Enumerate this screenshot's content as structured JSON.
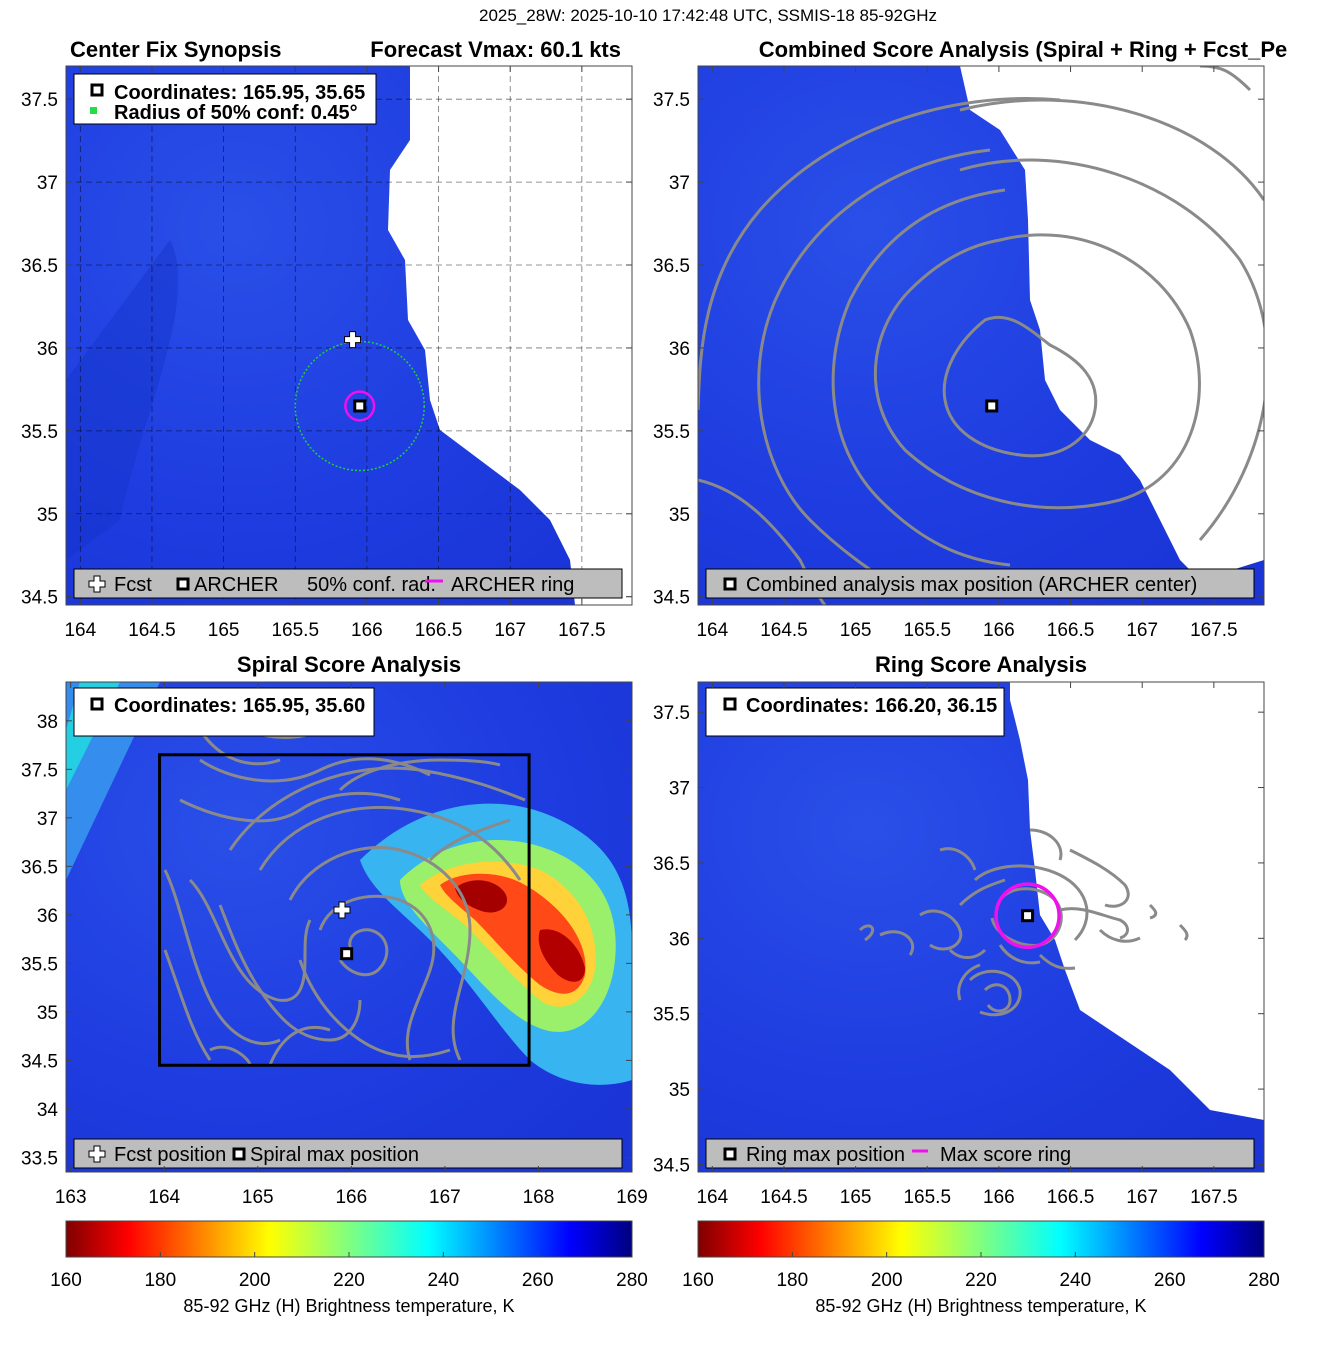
{
  "figure": {
    "suptitle": "2025_28W: 2025-10-10 17:42:48 UTC, SSMIS-18 85-92GHz"
  },
  "colors": {
    "background_field": "#1f3fe6",
    "cold_cloud_field": "#ffffff",
    "contour": "#8a8a8a",
    "ring": "#ee11ee",
    "conf_circle": "#22cc44",
    "legend_bg": "#bdbdbd"
  },
  "icons": {
    "fcst_marker": "white-plus-icon",
    "archer_marker": "black-square-icon",
    "ring_marker": "magenta-line-icon"
  },
  "chart_data": [
    {
      "type": "heatmap",
      "panel": "center-fix-synopsis",
      "title_left": "Center Fix Synopsis",
      "title_right": "Forecast Vmax: 60.1 kts",
      "xlim": [
        163.9,
        167.85
      ],
      "ylim": [
        34.45,
        37.7
      ],
      "x_ticks": [
        164,
        164.5,
        165,
        165.5,
        166,
        166.5,
        167,
        167.5
      ],
      "x_tick_labels": [
        "164",
        "164.5",
        "165",
        "165.5",
        "166",
        "166.5",
        "167",
        "167.5"
      ],
      "y_ticks": [
        34.5,
        35,
        35.5,
        36,
        36.5,
        37,
        37.5
      ],
      "y_tick_labels": [
        "34.5",
        "35",
        "35.5",
        "36",
        "36.5",
        "37",
        "37.5"
      ],
      "grid": true,
      "info_box": [
        "Coordinates: 165.95, 35.65",
        "Radius of 50% conf: 0.45°"
      ],
      "legend_items": [
        "Fcst",
        "ARCHER",
        "50% conf. rad.",
        "ARCHER ring"
      ],
      "fcst_position": [
        165.9,
        36.05
      ],
      "archer_center": [
        165.95,
        35.65
      ],
      "conf_radius_deg": 0.45,
      "archer_ring_radius_deg": 0.1
    },
    {
      "type": "heatmap",
      "panel": "combined-score-analysis",
      "title": "Combined Score Analysis (Spiral + Ring + Fcst_Pe",
      "xlim": [
        163.9,
        167.85
      ],
      "ylim": [
        34.45,
        37.7
      ],
      "x_ticks": [
        164,
        164.5,
        165,
        165.5,
        166,
        166.5,
        167,
        167.5
      ],
      "x_tick_labels": [
        "164",
        "164.5",
        "165",
        "165.5",
        "166",
        "166.5",
        "167",
        "167.5"
      ],
      "y_ticks": [
        34.5,
        35,
        35.5,
        36,
        36.5,
        37,
        37.5
      ],
      "y_tick_labels": [
        "34.5",
        "35",
        "35.5",
        "36",
        "36.5",
        "37",
        "37.5"
      ],
      "legend_items": [
        "Combined analysis max position (ARCHER center)"
      ],
      "max_position": [
        165.95,
        35.65
      ]
    },
    {
      "type": "heatmap",
      "panel": "spiral-score-analysis",
      "title": "Spiral Score Analysis",
      "xlim": [
        162.95,
        169.0
      ],
      "ylim": [
        33.35,
        38.4
      ],
      "x_ticks": [
        163,
        164,
        165,
        166,
        167,
        168,
        169
      ],
      "x_tick_labels": [
        "163",
        "164",
        "165",
        "166",
        "167",
        "168",
        "169"
      ],
      "y_ticks": [
        33.5,
        34,
        34.5,
        35,
        35.5,
        36,
        36.5,
        37,
        37.5,
        38
      ],
      "y_tick_labels": [
        "33.5",
        "34",
        "34.5",
        "35",
        "35.5",
        "36",
        "36.5",
        "37",
        "37.5",
        "38"
      ],
      "info_box": [
        "Coordinates: 165.95, 35.60"
      ],
      "legend_items": [
        "Fcst position",
        "Spiral max position"
      ],
      "fcst_position": [
        165.9,
        36.05
      ],
      "spiral_max_position": [
        165.95,
        35.6
      ],
      "search_box": {
        "lon": [
          163.95,
          167.9
        ],
        "lat": [
          34.45,
          37.65
        ]
      }
    },
    {
      "type": "heatmap",
      "panel": "ring-score-analysis",
      "title": "Ring Score Analysis",
      "xlim": [
        163.9,
        167.85
      ],
      "ylim": [
        34.45,
        37.7
      ],
      "x_ticks": [
        164,
        164.5,
        165,
        165.5,
        166,
        166.5,
        167,
        167.5
      ],
      "x_tick_labels": [
        "164",
        "164.5",
        "165",
        "165.5",
        "166",
        "166.5",
        "167",
        "167.5"
      ],
      "y_ticks": [
        34.5,
        35,
        35.5,
        36,
        36.5,
        37,
        37.5
      ],
      "y_tick_labels": [
        "34.5",
        "35",
        "35.5",
        "36",
        "36.5",
        "37",
        "37.5"
      ],
      "info_box": [
        "Coordinates: 166.20, 36.15"
      ],
      "legend_items": [
        "Ring max position",
        "Max score ring"
      ],
      "ring_max_position": [
        166.2,
        36.15
      ],
      "max_score_ring_radius_deg": 0.22
    }
  ],
  "colorbars": [
    {
      "ticks": [
        160,
        180,
        200,
        220,
        240,
        260,
        280
      ],
      "tick_labels": [
        "160",
        "180",
        "200",
        "220",
        "240",
        "260",
        "280"
      ],
      "label": "85-92 GHz (H) Brightness temperature, K",
      "range": [
        160,
        280
      ],
      "colormap": "jet"
    },
    {
      "ticks": [
        160,
        180,
        200,
        220,
        240,
        260,
        280
      ],
      "tick_labels": [
        "160",
        "180",
        "200",
        "220",
        "240",
        "260",
        "280"
      ],
      "label": "85-92 GHz (H) Brightness temperature, K",
      "range": [
        160,
        280
      ],
      "colormap": "jet"
    }
  ]
}
